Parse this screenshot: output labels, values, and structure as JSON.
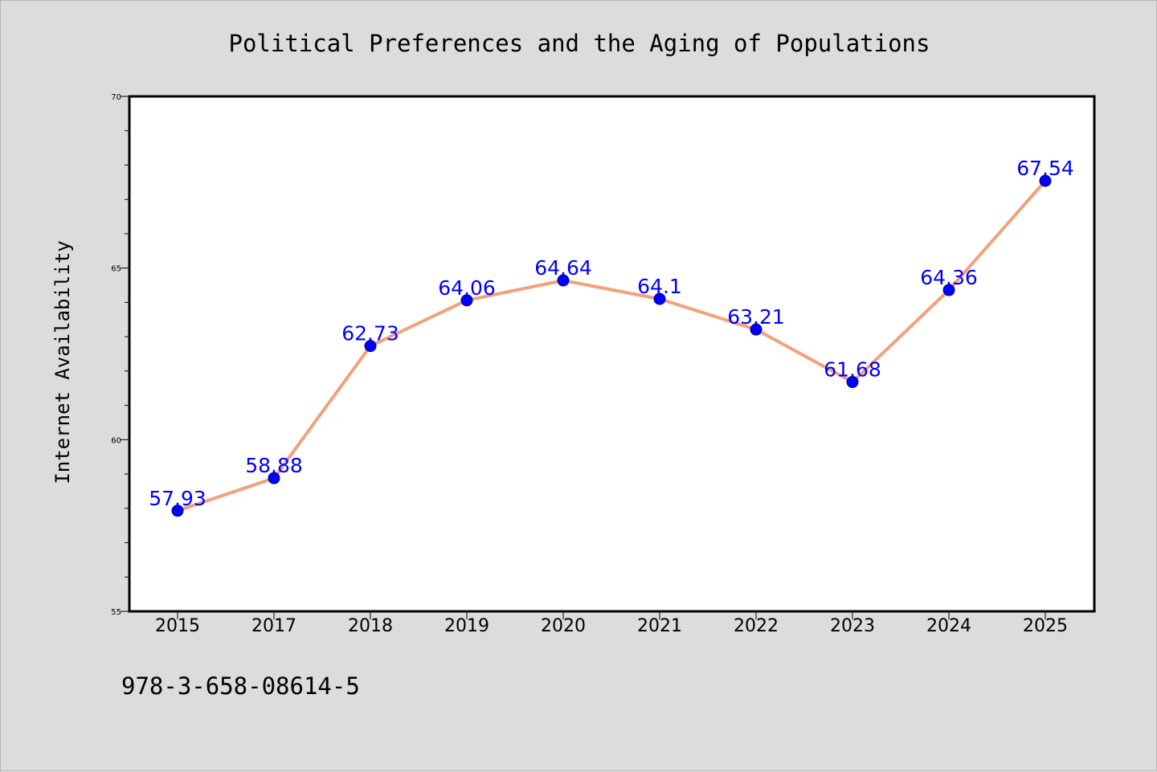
{
  "chart_data": {
    "type": "line",
    "title": "Political Preferences and the Aging of Populations",
    "xlabel": "",
    "ylabel": "Internet Availability",
    "categories": [
      "2015",
      "2017",
      "2018",
      "2019",
      "2020",
      "2021",
      "2022",
      "2023",
      "2024",
      "2025"
    ],
    "series": [
      {
        "values": [
          57.93,
          58.88,
          62.73,
          64.06,
          64.64,
          64.1,
          63.21,
          61.68,
          64.36,
          67.54
        ],
        "labels": [
          "57.93",
          "58.88",
          "62.73",
          "64.06",
          "64.64",
          "64.1",
          "63.21",
          "61.68",
          "64.36",
          "67.54"
        ],
        "line_color": "#f4a07a",
        "marker_color": "#0000ff"
      }
    ],
    "ylim": [
      55,
      70
    ],
    "y_ticks": [
      "55",
      "60",
      "65",
      "70"
    ],
    "grid": false,
    "legend": "none"
  },
  "footer": {
    "code": "978-3-658-08614-5"
  },
  "colors": {
    "background": "#dcdcdc",
    "plot_background": "#ffffff",
    "label_color": "#0000ff"
  }
}
